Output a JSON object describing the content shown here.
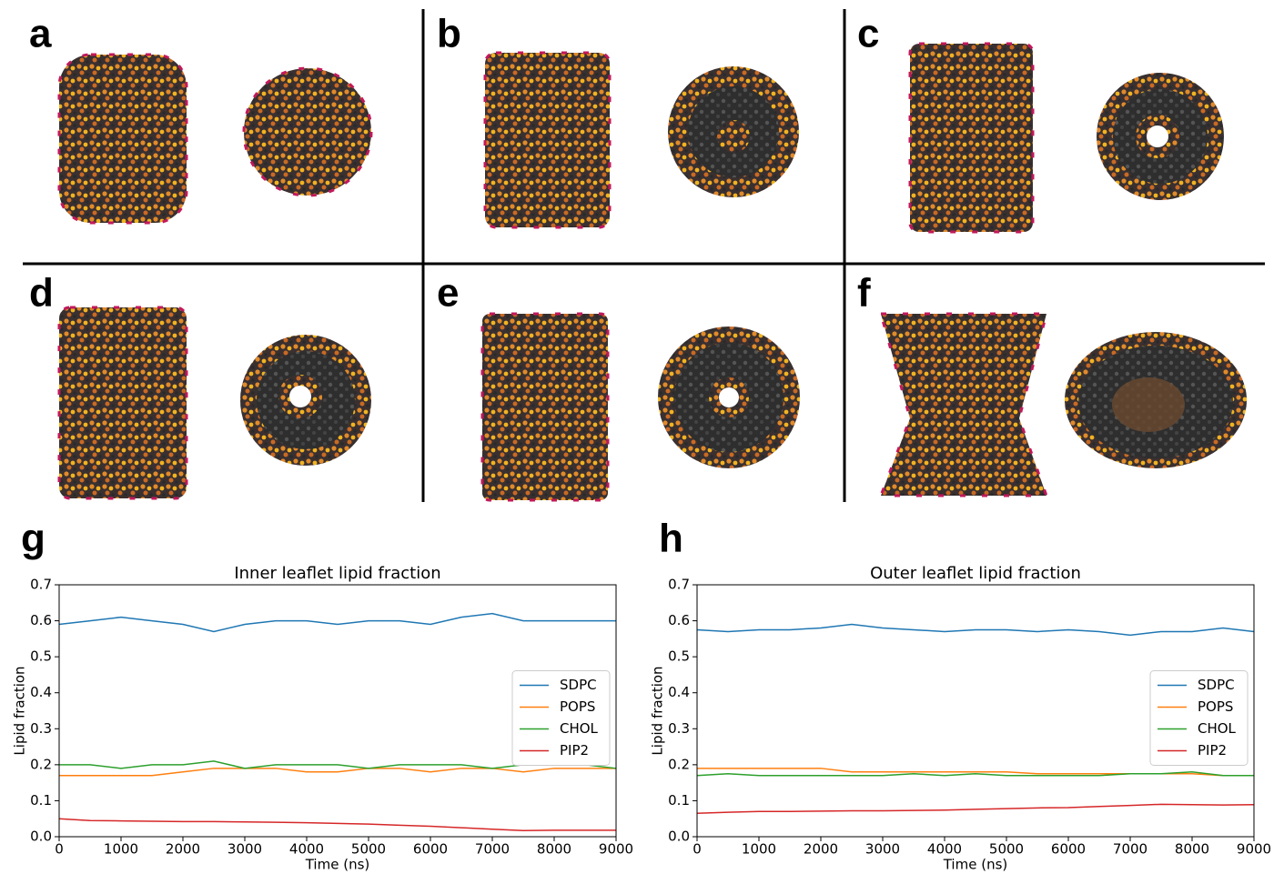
{
  "panels": [
    "a",
    "b",
    "c",
    "d",
    "e",
    "f"
  ],
  "chart_data": [
    {
      "type": "line",
      "panel_label": "g",
      "title": "Inner leaflet lipid fraction",
      "xlabel": "Time (ns)",
      "ylabel": "Lipid fraction",
      "x": [
        0,
        500,
        1000,
        1500,
        2000,
        2500,
        3000,
        3500,
        4000,
        4500,
        5000,
        5500,
        6000,
        6500,
        7000,
        7500,
        8000,
        8500,
        9000
      ],
      "series": [
        {
          "name": "SDPC",
          "color": "#1f77b4",
          "values": [
            0.59,
            0.6,
            0.61,
            0.6,
            0.59,
            0.57,
            0.59,
            0.6,
            0.6,
            0.59,
            0.6,
            0.6,
            0.59,
            0.61,
            0.62,
            0.6,
            0.6,
            0.6,
            0.6
          ]
        },
        {
          "name": "POPS",
          "color": "#ff7f0e",
          "values": [
            0.17,
            0.17,
            0.17,
            0.17,
            0.18,
            0.19,
            0.19,
            0.19,
            0.18,
            0.18,
            0.19,
            0.19,
            0.18,
            0.19,
            0.19,
            0.18,
            0.19,
            0.19,
            0.19
          ]
        },
        {
          "name": "CHOL",
          "color": "#2ca02c",
          "values": [
            0.2,
            0.2,
            0.19,
            0.2,
            0.2,
            0.21,
            0.19,
            0.2,
            0.2,
            0.2,
            0.19,
            0.2,
            0.2,
            0.2,
            0.19,
            0.2,
            0.2,
            0.2,
            0.19
          ]
        },
        {
          "name": "PIP2",
          "color": "#d62728",
          "values": [
            0.05,
            0.045,
            0.044,
            0.043,
            0.042,
            0.042,
            0.041,
            0.04,
            0.039,
            0.037,
            0.035,
            0.032,
            0.029,
            0.025,
            0.021,
            0.017,
            0.018,
            0.018,
            0.018
          ]
        }
      ],
      "xlim": [
        0,
        9000
      ],
      "ylim": [
        0,
        0.7
      ],
      "xticks": [
        0,
        1000,
        2000,
        3000,
        4000,
        5000,
        6000,
        7000,
        8000,
        9000
      ],
      "yticks": [
        {
          "value": 0,
          "label": "0.0"
        },
        0.1,
        0.2,
        0.3,
        0.4,
        0.5,
        0.6,
        0.7
      ],
      "legend": "center right"
    },
    {
      "type": "line",
      "panel_label": "h",
      "title": "Outer leaflet lipid fraction",
      "xlabel": "Time (ns)",
      "ylabel": "Lipid fraction",
      "x": [
        0,
        500,
        1000,
        1500,
        2000,
        2500,
        3000,
        3500,
        4000,
        4500,
        5000,
        5500,
        6000,
        6500,
        7000,
        7500,
        8000,
        8500,
        9000
      ],
      "series": [
        {
          "name": "SDPC",
          "color": "#1f77b4",
          "values": [
            0.575,
            0.57,
            0.575,
            0.575,
            0.58,
            0.59,
            0.58,
            0.575,
            0.57,
            0.575,
            0.575,
            0.57,
            0.575,
            0.57,
            0.56,
            0.57,
            0.57,
            0.58,
            0.57
          ]
        },
        {
          "name": "POPS",
          "color": "#ff7f0e",
          "values": [
            0.19,
            0.19,
            0.19,
            0.19,
            0.19,
            0.18,
            0.18,
            0.18,
            0.18,
            0.18,
            0.18,
            0.175,
            0.175,
            0.175,
            0.175,
            0.175,
            0.175,
            0.17,
            0.17
          ]
        },
        {
          "name": "CHOL",
          "color": "#2ca02c",
          "values": [
            0.17,
            0.175,
            0.17,
            0.17,
            0.17,
            0.17,
            0.17,
            0.175,
            0.17,
            0.175,
            0.17,
            0.17,
            0.17,
            0.17,
            0.175,
            0.175,
            0.18,
            0.17,
            0.17
          ]
        },
        {
          "name": "PIP2",
          "color": "#d62728",
          "values": [
            0.065,
            0.068,
            0.07,
            0.07,
            0.071,
            0.072,
            0.072,
            0.073,
            0.074,
            0.076,
            0.078,
            0.08,
            0.081,
            0.084,
            0.087,
            0.09,
            0.089,
            0.088,
            0.089
          ]
        }
      ],
      "xlim": [
        0,
        9000
      ],
      "ylim": [
        0,
        0.7
      ],
      "xticks": [
        0,
        1000,
        2000,
        3000,
        4000,
        5000,
        6000,
        7000,
        8000,
        9000
      ],
      "yticks": [
        {
          "value": 0,
          "label": "0.0"
        },
        0.1,
        0.2,
        0.3,
        0.4,
        0.5,
        0.6,
        0.7
      ],
      "legend": "center right"
    }
  ]
}
